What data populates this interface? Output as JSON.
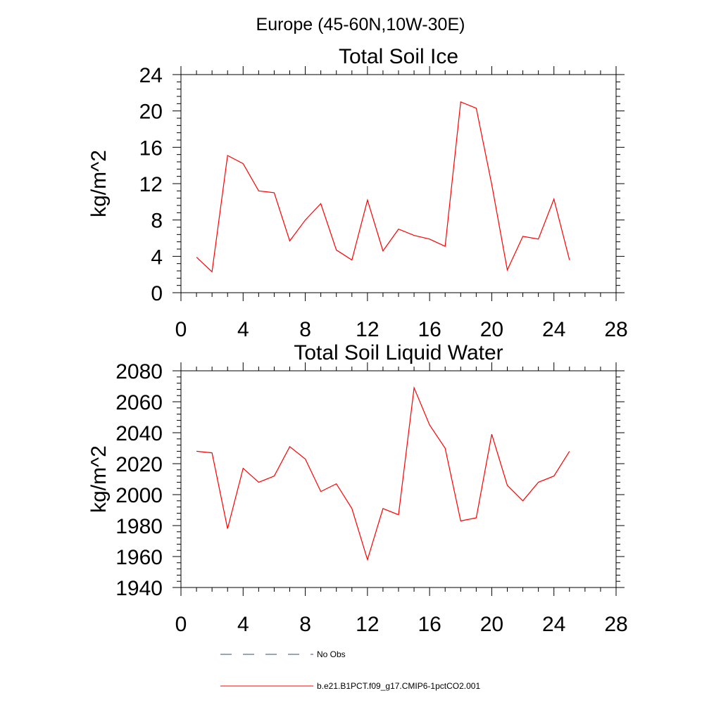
{
  "figure": {
    "suptitle": "Europe (45-60N,10W-30E)"
  },
  "chart_data": [
    {
      "type": "line",
      "title": "Total Soil Ice",
      "xlabel": "",
      "ylabel": "kg/m^2",
      "xlim": [
        0,
        28
      ],
      "ylim": [
        0,
        24
      ],
      "xticks": [
        0,
        4,
        8,
        12,
        16,
        20,
        24,
        28
      ],
      "yticks": [
        0,
        4,
        8,
        12,
        16,
        20,
        24
      ],
      "grid": false,
      "series": [
        {
          "name": "b.e21.B1PCT.f09_g17.CMIP6-1pctCO2.001",
          "color": "#ff0000",
          "x": [
            1,
            2,
            3,
            4,
            5,
            6,
            7,
            8,
            9,
            10,
            11,
            12,
            13,
            14,
            15,
            16,
            17,
            18,
            19,
            20,
            21,
            22,
            23,
            24,
            25
          ],
          "y": [
            3.9,
            2.3,
            15.1,
            14.2,
            11.2,
            11.0,
            5.7,
            8.0,
            9.8,
            4.7,
            3.6,
            10.2,
            4.6,
            7.0,
            6.3,
            5.9,
            5.1,
            21.0,
            20.3,
            11.9,
            2.5,
            6.2,
            5.9,
            10.3,
            3.6
          ]
        }
      ]
    },
    {
      "type": "line",
      "title": "Total Soil Liquid Water",
      "xlabel": "",
      "ylabel": "kg/m^2",
      "xlim": [
        0,
        28
      ],
      "ylim": [
        1940,
        2080
      ],
      "xticks": [
        0,
        4,
        8,
        12,
        16,
        20,
        24,
        28
      ],
      "yticks": [
        1940,
        1960,
        1980,
        2000,
        2020,
        2040,
        2060,
        2080
      ],
      "grid": false,
      "series": [
        {
          "name": "b.e21.B1PCT.f09_g17.CMIP6-1pctCO2.001",
          "color": "#ff0000",
          "x": [
            1,
            2,
            3,
            4,
            5,
            6,
            7,
            8,
            9,
            10,
            11,
            12,
            13,
            14,
            15,
            16,
            17,
            18,
            19,
            20,
            21,
            22,
            23,
            24,
            25
          ],
          "y": [
            2028,
            2027,
            1978,
            2017,
            2008,
            2012,
            2031,
            2023,
            2002,
            2007,
            1991,
            1958,
            1991,
            1987,
            2069,
            2045,
            2030,
            1983,
            1985,
            2039,
            2006,
            1996,
            2008,
            2012,
            2028
          ]
        }
      ]
    }
  ],
  "legend": {
    "placement": "bottom-left",
    "items": [
      {
        "label": "No Obs",
        "style": "dashed",
        "color": "#3a4a7a"
      },
      {
        "label": "b.e21.B1PCT.f09_g17.CMIP6-1pctCO2.001",
        "style": "solid",
        "color": "#ff0000"
      }
    ]
  }
}
